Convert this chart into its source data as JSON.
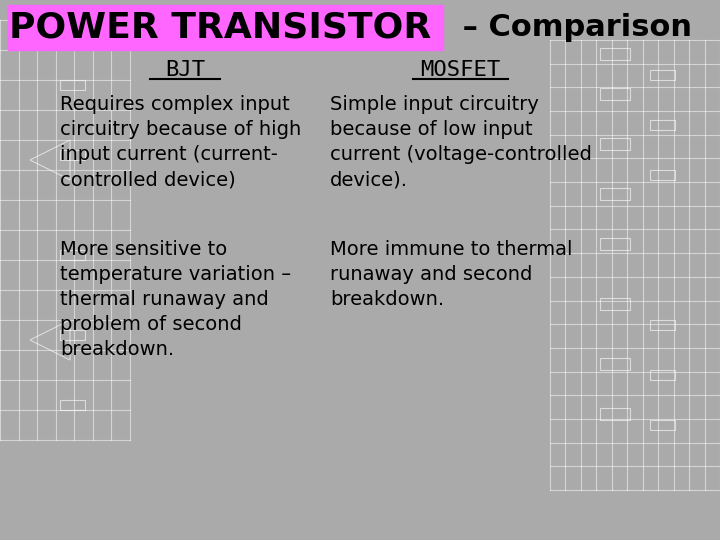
{
  "title_box_text": "POWER TRANSISTOR",
  "title_suffix": " – Comparison",
  "bg_color": "#aaaaaa",
  "title_box_color": "#ff66ff",
  "title_box_text_color": "#000000",
  "title_text_color": "#000000",
  "col1_header": "BJT",
  "col2_header": "MOSFET",
  "col1_row1": "Requires complex input\ncircuitry because of high\ninput current (current-\ncontrolled device)",
  "col2_row1": "Simple input circuitry\nbecause of low input\ncurrent (voltage-controlled\ndevice).",
  "col1_row2": "More sensitive to\ntemperature variation –\nthermal runaway and\nproblem of second\nbreakdown.",
  "col2_row2": "More immune to thermal\nrunaway and second\nbreakdown.",
  "circuit_bg_color": "#b0b8b0",
  "panel_color": "#b0b0b0"
}
